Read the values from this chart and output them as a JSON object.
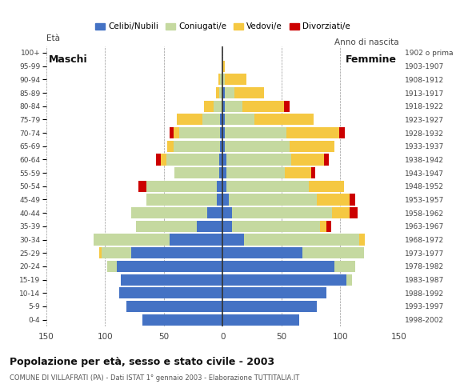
{
  "age_groups": [
    "0-4",
    "5-9",
    "10-14",
    "15-19",
    "20-24",
    "25-29",
    "30-34",
    "35-39",
    "40-44",
    "45-49",
    "50-54",
    "55-59",
    "60-64",
    "65-69",
    "70-74",
    "75-79",
    "80-84",
    "85-89",
    "90-94",
    "95-99",
    "100+"
  ],
  "birth_years": [
    "1998-2002",
    "1993-1997",
    "1988-1992",
    "1983-1987",
    "1978-1982",
    "1973-1977",
    "1968-1972",
    "1963-1967",
    "1958-1962",
    "1953-1957",
    "1948-1952",
    "1943-1947",
    "1938-1942",
    "1933-1937",
    "1928-1932",
    "1923-1927",
    "1918-1922",
    "1913-1917",
    "1908-1912",
    "1903-1907",
    "1902 o prima"
  ],
  "males": {
    "celibi": [
      68,
      82,
      88,
      87,
      90,
      78,
      45,
      22,
      13,
      5,
      5,
      3,
      3,
      2,
      2,
      2,
      0,
      0,
      0,
      0,
      0
    ],
    "coniugati": [
      0,
      0,
      0,
      0,
      8,
      25,
      65,
      52,
      65,
      60,
      60,
      38,
      45,
      40,
      35,
      15,
      8,
      3,
      2,
      0,
      0
    ],
    "vedovi": [
      0,
      0,
      0,
      0,
      0,
      2,
      0,
      0,
      0,
      0,
      0,
      0,
      5,
      5,
      5,
      22,
      8,
      3,
      2,
      0,
      0
    ],
    "divorziati": [
      0,
      0,
      0,
      0,
      0,
      0,
      0,
      0,
      0,
      0,
      7,
      0,
      4,
      0,
      3,
      0,
      0,
      0,
      0,
      0,
      0
    ]
  },
  "females": {
    "nubili": [
      65,
      80,
      88,
      105,
      95,
      68,
      18,
      8,
      8,
      5,
      3,
      3,
      3,
      2,
      2,
      2,
      2,
      2,
      0,
      0,
      0
    ],
    "coniugate": [
      0,
      0,
      0,
      5,
      18,
      52,
      98,
      75,
      85,
      75,
      70,
      50,
      55,
      55,
      52,
      25,
      15,
      8,
      2,
      0,
      0
    ],
    "vedove": [
      0,
      0,
      0,
      0,
      0,
      0,
      5,
      5,
      15,
      28,
      30,
      22,
      28,
      38,
      45,
      50,
      35,
      25,
      18,
      2,
      0
    ],
    "divorziate": [
      0,
      0,
      0,
      0,
      0,
      0,
      0,
      4,
      7,
      5,
      0,
      4,
      4,
      0,
      5,
      0,
      5,
      0,
      0,
      0,
      0
    ]
  },
  "colors": {
    "celibi": "#4472c4",
    "coniugati": "#c5d9a0",
    "vedovi": "#f5c842",
    "divorziati": "#cc0000"
  },
  "title": "Popolazione per età, sesso e stato civile - 2003",
  "subtitle": "COMUNE DI VILLAFRATI (PA) - Dati ISTAT 1° gennaio 2003 - Elaborazione TUTTITALIA.IT",
  "label_maschi": "Maschi",
  "label_femmine": "Femmine",
  "label_eta": "Età",
  "label_anno": "Anno di nascita",
  "xlim": 150,
  "xticks": [
    -150,
    -100,
    -50,
    0,
    50,
    100,
    150
  ],
  "legend_labels": [
    "Celibi/Nubili",
    "Coniugati/e",
    "Vedovi/e",
    "Divorziati/e"
  ],
  "bg_color": "#ffffff",
  "grid_color": "#999999"
}
